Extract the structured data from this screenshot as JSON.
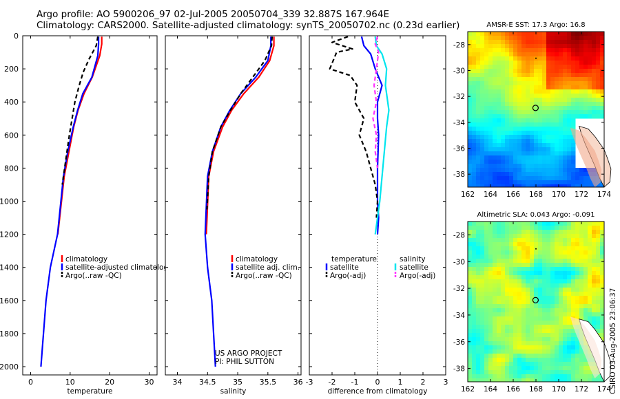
{
  "header": {
    "line1": "Argo profile: AO 5900206_97 02-Jul-2005 20050704_339 32.887S 167.964E",
    "line2": "Climatology: CARS2000. Satellite-adjusted climatology: synTS_20050702.nc (0.23d earlier)"
  },
  "footer_stamp": "CSIRO 03-Aug-2005 23:06:37",
  "colors": {
    "climatology": "#ff0000",
    "satellite": "#0000ff",
    "argo": "#000000",
    "salinity_satellite": "#00e5ee",
    "salinity_argo": "#ff33ff"
  },
  "chart_data": [
    {
      "type": "line",
      "name": "temperature-profile",
      "xlabel": "temperature",
      "ylabel": "",
      "xlim": [
        -2,
        32
      ],
      "ylim": [
        2050,
        0
      ],
      "xticks": [
        0,
        10,
        20,
        30
      ],
      "yticks": [
        0,
        200,
        400,
        600,
        800,
        1000,
        1200,
        1400,
        1600,
        1800,
        2000
      ],
      "y_inverted": true,
      "legend": {
        "position": "bottom-right",
        "entries": [
          "climatology",
          "satellite-adjusted climatology",
          "Argo(..raw -QC)"
        ]
      },
      "series": [
        {
          "name": "climatology",
          "style": "solid",
          "x": [
            18.0,
            18.0,
            17.5,
            15.6,
            13.5,
            12.0,
            10.9,
            9.7,
            8.5,
            6.9
          ],
          "y": [
            5,
            50,
            120,
            250,
            350,
            450,
            550,
            700,
            850,
            1200
          ]
        },
        {
          "name": "satellite-adjusted climatology",
          "style": "solid",
          "x": [
            17.2,
            17.2,
            17.0,
            15.5,
            13.2,
            11.9,
            10.8,
            9.4,
            8.3,
            6.8,
            5.0,
            3.9,
            2.6
          ],
          "y": [
            5,
            50,
            120,
            250,
            350,
            450,
            550,
            700,
            850,
            1200,
            1400,
            1600,
            2000
          ]
        },
        {
          "name": "Argo(..raw -QC)",
          "style": "dashed",
          "x": [
            17.0,
            16.6,
            14.8,
            13.3,
            12.3,
            11.2,
            10.5,
            9.8,
            8.9,
            8.0
          ],
          "y": [
            5,
            60,
            140,
            220,
            300,
            400,
            500,
            600,
            750,
            900
          ]
        }
      ]
    },
    {
      "type": "line",
      "name": "salinity-profile",
      "xlabel": "salinity",
      "ylabel": "",
      "xlim": [
        33.8,
        36.05
      ],
      "ylim": [
        2050,
        0
      ],
      "xticks": [
        34,
        34.5,
        35,
        35.5,
        36
      ],
      "y_inverted": true,
      "legend": {
        "position": "bottom-right",
        "entries": [
          "climatology",
          "satellite adj. clim.",
          "Argo(..raw -QC)"
        ]
      },
      "annotation": [
        "US ARGO PROJECT",
        "PI: PHIL SUTTON"
      ],
      "series": [
        {
          "name": "climatology",
          "style": "solid",
          "x": [
            35.6,
            35.6,
            35.53,
            35.35,
            35.1,
            34.9,
            34.75,
            34.6,
            34.52,
            34.48
          ],
          "y": [
            5,
            60,
            150,
            250,
            350,
            450,
            550,
            700,
            850,
            1200
          ]
        },
        {
          "name": "satellite adj. clim.",
          "style": "solid",
          "x": [
            35.55,
            35.55,
            35.5,
            35.3,
            35.05,
            34.87,
            34.72,
            34.58,
            34.5,
            34.46,
            34.5,
            34.57,
            34.63
          ],
          "y": [
            5,
            60,
            150,
            250,
            350,
            450,
            550,
            700,
            850,
            1200,
            1400,
            1600,
            2000
          ]
        },
        {
          "name": "Argo(..raw -QC)",
          "style": "dashed",
          "x": [
            35.57,
            35.56,
            35.45,
            35.25,
            35.05,
            34.88,
            34.72,
            34.58,
            34.52,
            34.49
          ],
          "y": [
            5,
            60,
            150,
            250,
            350,
            450,
            550,
            700,
            850,
            1050
          ]
        }
      ]
    },
    {
      "type": "line",
      "name": "difference-profile",
      "xlabel": "difference from climatology",
      "ylabel": "",
      "xlim": [
        -3,
        3
      ],
      "ylim": [
        2050,
        0
      ],
      "xticks": [
        -3,
        -2,
        -1,
        0,
        1,
        2,
        3
      ],
      "y_inverted": true,
      "legend": {
        "position": "bottom",
        "entries": [
          "temperature",
          "satellite",
          "Argo(-adj)",
          "salinity",
          "satellite",
          "Argo(-adj)"
        ]
      },
      "series": [
        {
          "name": "temperature satellite",
          "style": "solid",
          "x": [
            -0.7,
            -0.6,
            -0.3,
            -0.1,
            0.2,
            0.0,
            0.0,
            0.05,
            0.0,
            0.0,
            0.05,
            0.0
          ],
          "y": [
            5,
            60,
            110,
            200,
            300,
            400,
            500,
            600,
            800,
            1000,
            1100,
            1200
          ]
        },
        {
          "name": "temperature Argo(-adj)",
          "style": "dashed",
          "x": [
            -1.3,
            -2.0,
            -1.1,
            -1.8,
            -2.1,
            -1.2,
            -0.9,
            -1.0,
            -0.6,
            -0.8,
            -0.5,
            -0.3,
            -0.1,
            0.0,
            -0.05
          ],
          "y": [
            5,
            40,
            80,
            100,
            200,
            240,
            300,
            400,
            500,
            600,
            700,
            800,
            900,
            1000,
            1100
          ]
        },
        {
          "name": "salinity satellite",
          "style": "solid",
          "x": [
            -0.1,
            -0.05,
            0.2,
            0.4,
            0.35,
            0.5,
            0.4,
            0.3,
            0.2,
            0.1,
            0.0,
            -0.1
          ],
          "y": [
            5,
            60,
            110,
            200,
            300,
            450,
            550,
            700,
            850,
            1000,
            1100,
            1200
          ]
        },
        {
          "name": "salinity Argo(-adj)",
          "style": "dashed",
          "x": [
            0.0,
            -0.1,
            0.05,
            -0.05,
            -0.15,
            -0.05,
            -0.2,
            -0.05,
            -0.1,
            0.0
          ],
          "y": [
            5,
            50,
            100,
            200,
            300,
            400,
            500,
            600,
            700,
            800
          ]
        }
      ]
    },
    {
      "type": "heatmap",
      "name": "sst-map",
      "title": "AMSR-E SST: 17.3 Argo: 16.8",
      "xlim": [
        162,
        174
      ],
      "ylim": [
        -39,
        -27
      ],
      "xticks": [
        162,
        164,
        166,
        168,
        170,
        172,
        174
      ],
      "yticks": [
        -28,
        -30,
        -32,
        -34,
        -36,
        -38
      ],
      "marker": {
        "lon": 167.964,
        "lat": -32.887
      }
    },
    {
      "type": "heatmap",
      "name": "sla-map",
      "title": "Altimetric SLA: 0.043 Argo: -0.091",
      "xlim": [
        162,
        174
      ],
      "ylim": [
        -39,
        -27
      ],
      "xticks": [
        162,
        164,
        166,
        168,
        170,
        172,
        174
      ],
      "yticks": [
        -28,
        -30,
        -32,
        -34,
        -36,
        -38
      ],
      "marker": {
        "lon": 167.964,
        "lat": -32.887
      }
    }
  ]
}
